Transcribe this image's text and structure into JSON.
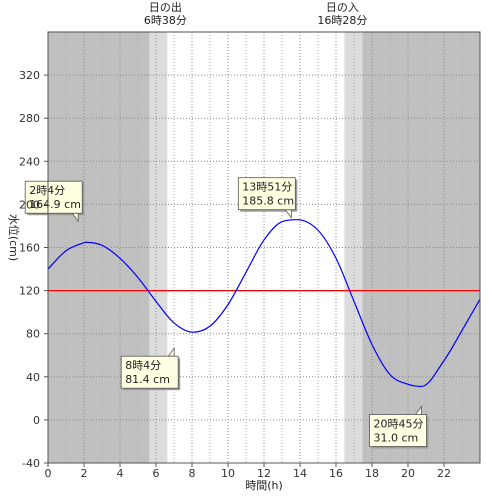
{
  "chart_data": {
    "type": "line",
    "xlabel": "時間(h)",
    "ylabel": "水位(cm)",
    "xlim": [
      0,
      24
    ],
    "ylim": [
      -40,
      360
    ],
    "x_ticks": [
      0,
      2,
      4,
      6,
      8,
      10,
      12,
      14,
      16,
      18,
      20,
      22
    ],
    "y_ticks": [
      -40,
      0,
      40,
      80,
      120,
      160,
      200,
      240,
      280,
      320
    ],
    "grid": true,
    "reference_line": {
      "value": 120,
      "color": "#ff0000"
    },
    "line_color": "#0000ff",
    "series": [
      {
        "x": [
          0,
          1,
          2,
          2.0667,
          3,
          4,
          5,
          6,
          7,
          8.0667,
          9,
          10,
          11,
          12,
          13,
          13.85,
          15,
          16,
          17,
          18,
          19,
          20,
          20.75,
          22,
          23,
          24
        ],
        "values": [
          140,
          157,
          164.5,
          164.9,
          162,
          150,
          132,
          110,
          90,
          81.4,
          87,
          107,
          137,
          167,
          184,
          185.8,
          176,
          150,
          110,
          70,
          42,
          33,
          31.0,
          55,
          83,
          112
        ]
      }
    ],
    "annotations": [
      {
        "time": "2時4分",
        "value": "164.9 cm",
        "x": 2.0667,
        "y": 164.9
      },
      {
        "time": "8時4分",
        "value": "81.4 cm",
        "x": 8.0667,
        "y": 81.4
      },
      {
        "time": "13時51分",
        "value": "185.8 cm",
        "x": 13.85,
        "y": 185.8
      },
      {
        "time": "20時45分",
        "value": "31.0 cm",
        "x": 20.75,
        "y": 31.0
      }
    ],
    "sunrise": {
      "label": "日の出",
      "time": "6時38分",
      "hours": 6.633
    },
    "sunset": {
      "label": "日の入",
      "time": "16時28分",
      "hours": 16.467
    },
    "twilight_band_hours": 1,
    "colors": {
      "night": "#c0c0c0",
      "twilight": "#dcdcdc",
      "day": "#ffffff"
    }
  }
}
